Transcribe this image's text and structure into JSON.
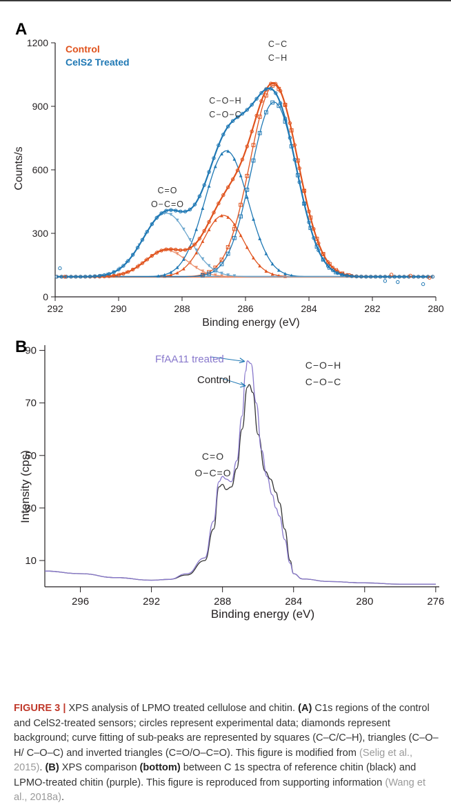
{
  "chart_data": [
    {
      "panel": "A",
      "type": "line",
      "xlabel": "Binding energy (eV)",
      "ylabel": "Counts/s",
      "xlim": [
        292,
        280
      ],
      "ylim": [
        0,
        1200
      ],
      "x_ticks": [
        292,
        290,
        288,
        286,
        284,
        282,
        280
      ],
      "y_ticks": [
        0,
        300,
        600,
        900,
        1200
      ],
      "legend": [
        {
          "name": "Control",
          "color": "#e0531d"
        },
        {
          "name": "CelS2 Treated",
          "color": "#1f78b4"
        }
      ],
      "legend_position": "top-left",
      "annotations": [
        {
          "lines": [
            "C−C",
            "C−H"
          ],
          "x": 285.1,
          "y": 1080
        },
        {
          "lines": [
            "C−O−H",
            "C−O−C"
          ],
          "x": 286.6,
          "y": 900
        },
        {
          "lines": [
            "C=O",
            "O−C=O"
          ],
          "x": 288.5,
          "y": 505
        }
      ],
      "baseline": 95,
      "series": [
        {
          "name": "Control",
          "color": "#e0531d",
          "components": [
            {
              "center": 285.1,
              "height": 905,
              "sigma": 0.75,
              "marker": "square"
            },
            {
              "center": 286.7,
              "height": 290,
              "sigma": 0.62,
              "marker": "triangle"
            },
            {
              "center": 288.5,
              "height": 125,
              "sigma": 0.65,
              "marker": "inverted-triangle"
            }
          ]
        },
        {
          "name": "CelS2 Treated",
          "color": "#1f78b4",
          "components": [
            {
              "center": 285.1,
              "height": 825,
              "sigma": 0.72,
              "marker": "square"
            },
            {
              "center": 286.6,
              "height": 595,
              "sigma": 0.68,
              "marker": "triangle"
            },
            {
              "center": 288.5,
              "height": 300,
              "sigma": 0.72,
              "marker": "inverted-triangle"
            }
          ]
        }
      ]
    },
    {
      "panel": "B",
      "type": "line",
      "xlabel": "Binding energy (eV)",
      "ylabel": "Intensity (cps)",
      "xlim": [
        298,
        275.8
      ],
      "ylim": [
        0,
        92
      ],
      "x_ticks": [
        296,
        292,
        288,
        284,
        280,
        276
      ],
      "y_ticks": [
        10,
        30,
        50,
        70,
        90
      ],
      "annotations": [
        {
          "text": "FfAA11 treated",
          "color": "#8878cc",
          "x": 289.8,
          "y": 88
        },
        {
          "text": "Control",
          "color": "#231f20",
          "x": 290.1,
          "y": 80
        },
        {
          "lines": [
            "C−O−H",
            "C−O−C"
          ],
          "x": 284.8,
          "y": 84
        },
        {
          "lines": [
            "C=O",
            "O−C=O"
          ],
          "x": 289.2,
          "y": 48
        }
      ],
      "series": [
        {
          "name": "Control",
          "color": "#333333",
          "points": [
            [
              298,
              6
            ],
            [
              296,
              5
            ],
            [
              294,
              3.5
            ],
            [
              292,
              2.5
            ],
            [
              291,
              2.8
            ],
            [
              290,
              4.5
            ],
            [
              289,
              10
            ],
            [
              288.5,
              22
            ],
            [
              288.2,
              38
            ],
            [
              288,
              39
            ],
            [
              287.8,
              37
            ],
            [
              287.5,
              38
            ],
            [
              287.2,
              45
            ],
            [
              286.9,
              60
            ],
            [
              286.6,
              76
            ],
            [
              286.5,
              77
            ],
            [
              286.3,
              74
            ],
            [
              286,
              58
            ],
            [
              285.6,
              44
            ],
            [
              285.3,
              41
            ],
            [
              285,
              36
            ],
            [
              284.8,
              32
            ],
            [
              284.5,
              22
            ],
            [
              284.2,
              10
            ],
            [
              284,
              5
            ],
            [
              283.5,
              3
            ],
            [
              282,
              2
            ],
            [
              280,
              1.5
            ],
            [
              278,
              1
            ],
            [
              276,
              1
            ]
          ]
        },
        {
          "name": "FfAA11 treated",
          "color": "#8878cc",
          "points": [
            [
              298,
              6
            ],
            [
              296,
              5
            ],
            [
              294,
              3.5
            ],
            [
              292,
              2.5
            ],
            [
              291,
              2.8
            ],
            [
              290,
              5
            ],
            [
              289,
              11
            ],
            [
              288.5,
              25
            ],
            [
              288.2,
              40
            ],
            [
              288,
              42
            ],
            [
              287.8,
              41
            ],
            [
              287.5,
              40
            ],
            [
              287.2,
              48
            ],
            [
              286.9,
              65
            ],
            [
              286.7,
              82
            ],
            [
              286.6,
              86
            ],
            [
              286.4,
              85
            ],
            [
              286.1,
              70
            ],
            [
              285.8,
              52
            ],
            [
              285.5,
              42
            ],
            [
              285.2,
              35
            ],
            [
              285,
              30
            ],
            [
              284.8,
              27
            ],
            [
              284.5,
              18
            ],
            [
              284.2,
              9
            ],
            [
              284,
              5
            ],
            [
              283.5,
              3
            ],
            [
              282,
              2
            ],
            [
              280,
              1.5
            ],
            [
              278,
              1
            ],
            [
              276,
              1
            ]
          ]
        }
      ]
    }
  ],
  "caption": {
    "label": "FIGURE 3 |",
    "lead": " XPS analysis of LPMO treated cellulose and chitin. ",
    "a_label": "(A)",
    "a_text": " C1s regions of the control and CelS2-treated sensors; circles represent experimental data; diamonds represent background; curve fitting of sub-peaks are represented by squares (C–C/C–H), triangles (C–O–H/ C–O–C) and inverted triangles (C=O/O–C=O). This figure is modified from ",
    "ref1": "(Selig et al., 2015)",
    "mid": ". ",
    "b_label": "(B)",
    "b_text": " XPS comparison ",
    "bottom": "(bottom)",
    "b_text2": " between C 1s spectra of reference chitin (black) and LPMO-treated chitin (purple). This figure is reproduced from supporting information ",
    "ref2": "(Wang et al., 2018a)",
    "end": "."
  }
}
